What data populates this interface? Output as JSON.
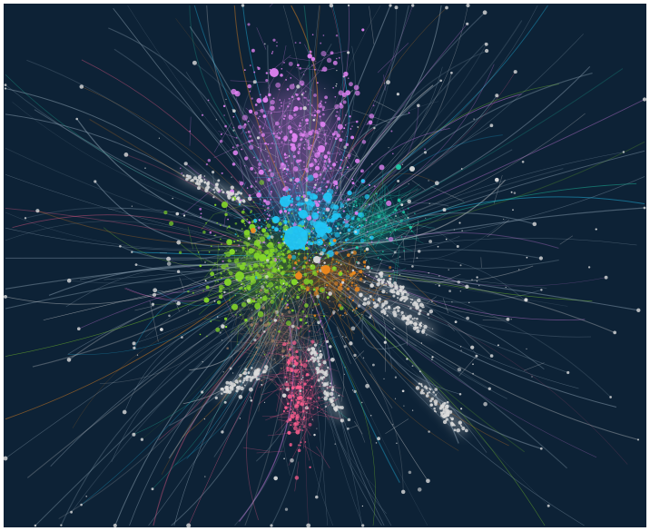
{
  "graph": {
    "background": "#0d2236",
    "communities": [
      {
        "color": "#e083f2",
        "role": "top-cluster"
      },
      {
        "color": "#22c6f5",
        "role": "core-cluster"
      },
      {
        "color": "#84d629",
        "role": "left-cluster"
      },
      {
        "color": "#f08a1e",
        "role": "small-cluster"
      },
      {
        "color": "#ff5f8f",
        "role": "bottom-cluster"
      },
      {
        "color": "#dcdcdc",
        "role": "periphery-cluster"
      },
      {
        "color": "#1fc9a7",
        "role": "teal-cluster"
      },
      {
        "color": "#9a7a62",
        "role": "brown-cluster"
      }
    ],
    "edge_color": "#8fa4b5"
  }
}
